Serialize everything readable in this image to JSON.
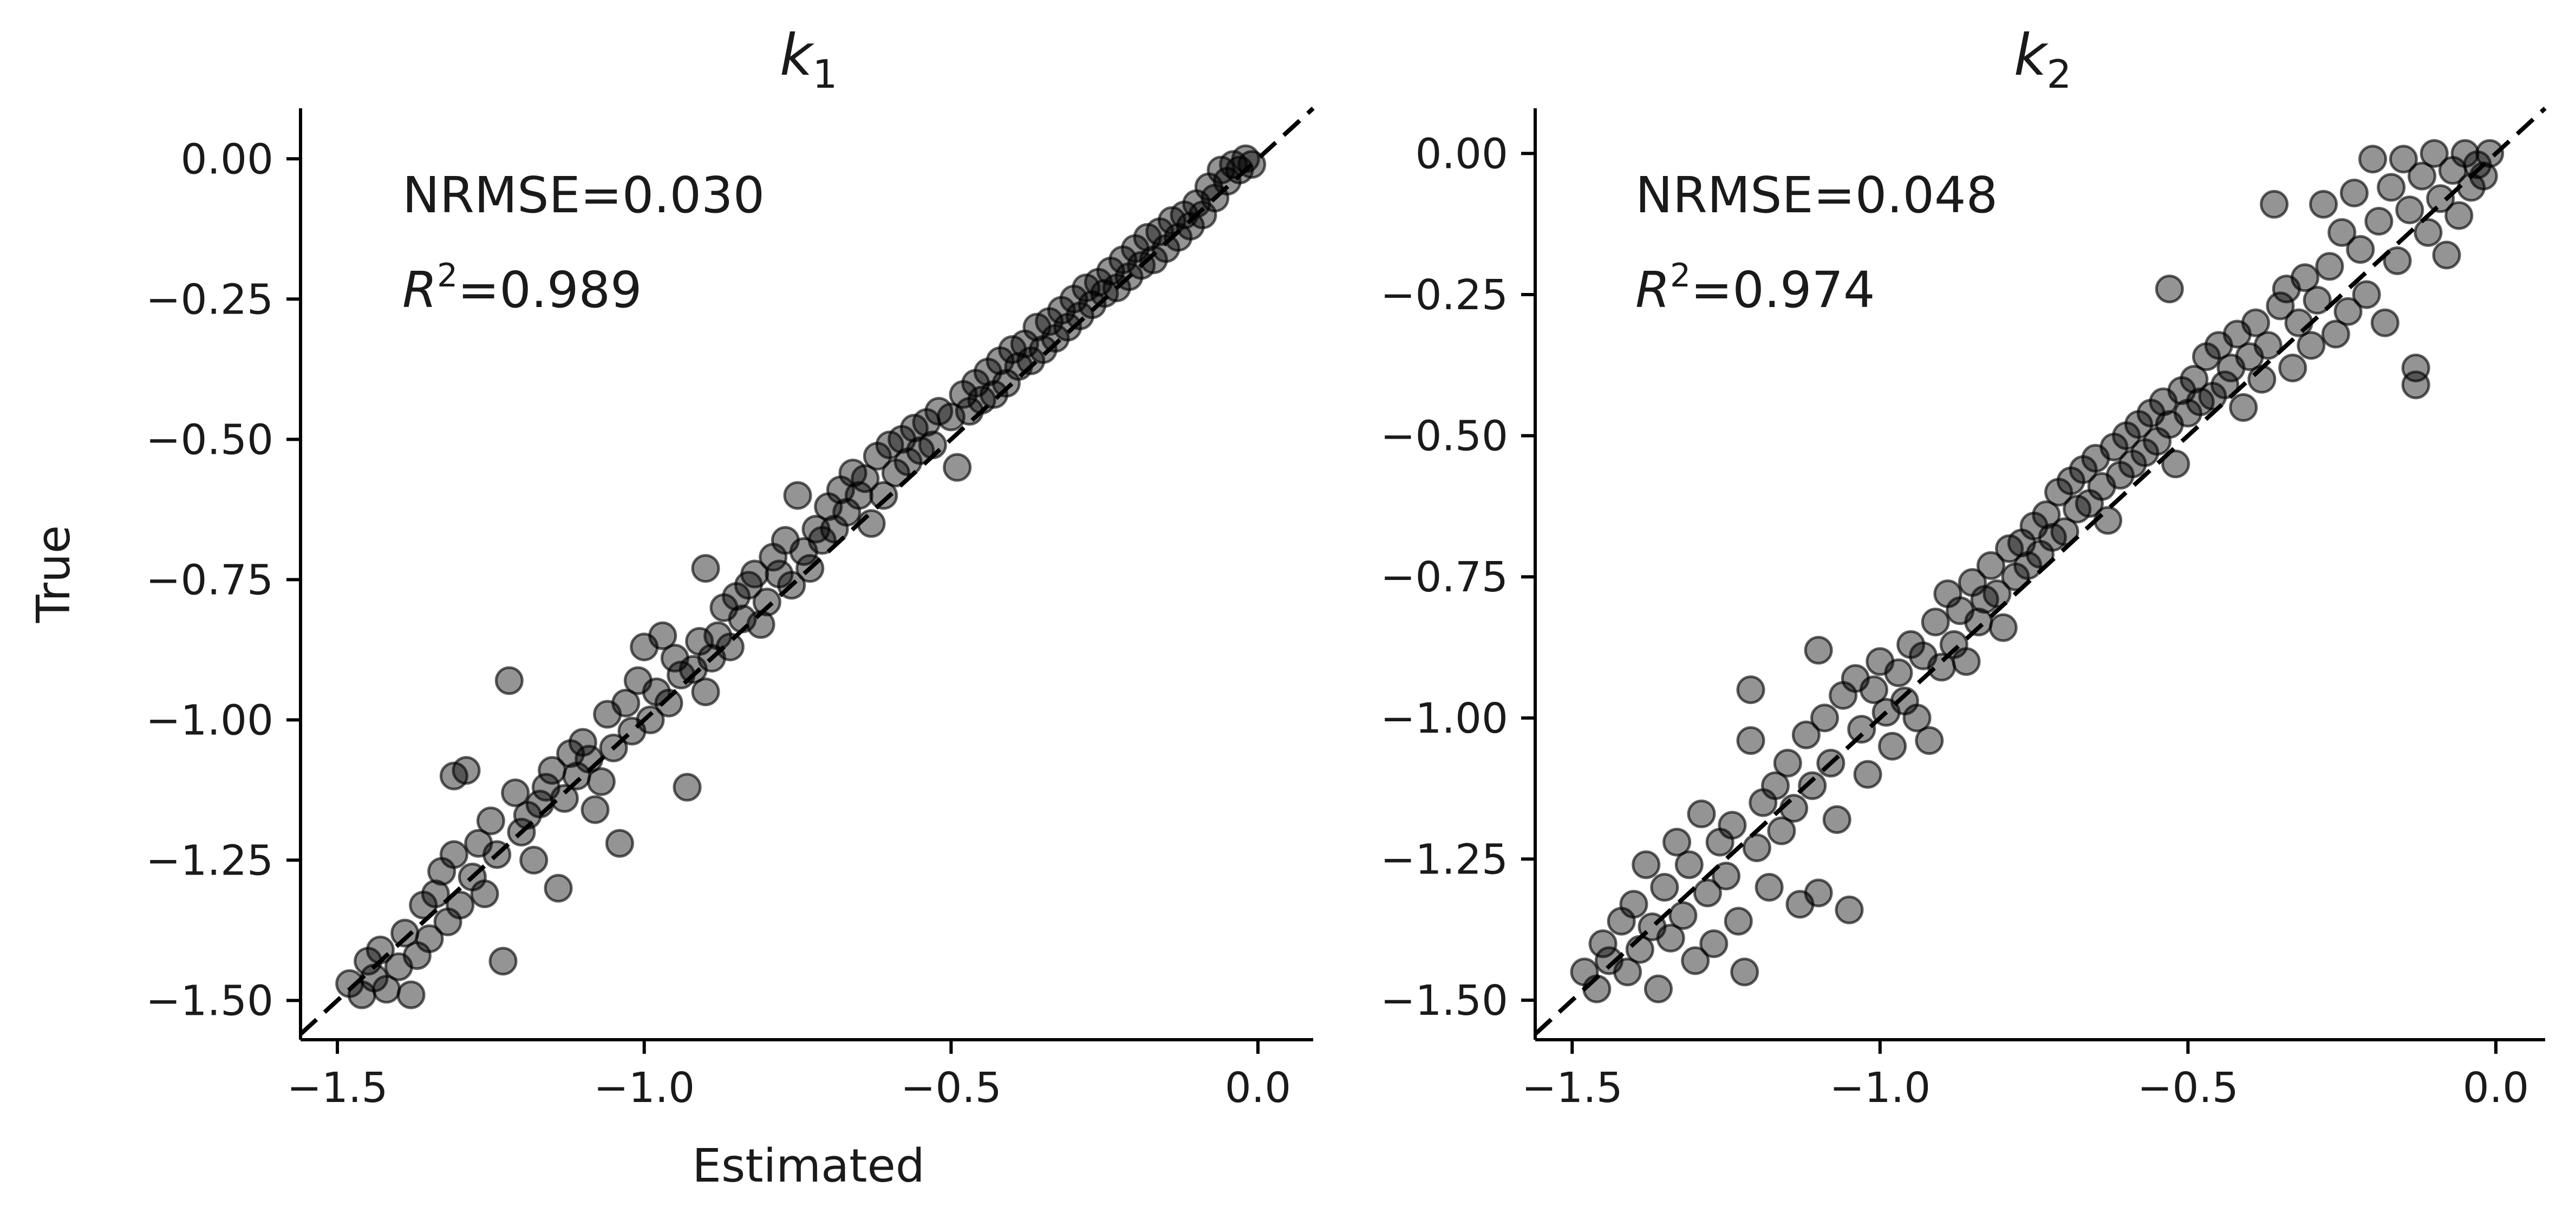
{
  "figure": {
    "shared_xlabel": "Estimated",
    "shared_ylabel": "True"
  },
  "chart_data": [
    {
      "type": "scatter",
      "title": "k",
      "title_subscript": "1",
      "xlabel": "Estimated",
      "ylabel": "True",
      "xlim": [
        -1.56,
        0.09
      ],
      "ylim": [
        -1.57,
        0.09
      ],
      "xticks": [
        -1.5,
        -1.0,
        -0.5,
        0.0
      ],
      "xtick_labels": [
        "−1.5",
        "−1.0",
        "−0.5",
        "0.0"
      ],
      "yticks": [
        0.0,
        -0.25,
        -0.5,
        -0.75,
        -1.0,
        -1.25,
        -1.5
      ],
      "ytick_labels": [
        "0.00",
        "−0.25",
        "−0.50",
        "−0.75",
        "−1.00",
        "−1.25",
        "−1.50"
      ],
      "reference_line": "y = x (dashed)",
      "annotations": {
        "nrmse_text": "NRMSE=0.030",
        "r2_prefix": "R",
        "r2_exp": "2",
        "r2_value": "=0.989"
      },
      "marker_color": "#000000",
      "marker_alpha": 0.42,
      "points": [
        [
          -1.48,
          -1.47
        ],
        [
          -1.46,
          -1.49
        ],
        [
          -1.45,
          -1.43
        ],
        [
          -1.44,
          -1.46
        ],
        [
          -1.43,
          -1.41
        ],
        [
          -1.42,
          -1.48
        ],
        [
          -1.4,
          -1.44
        ],
        [
          -1.39,
          -1.38
        ],
        [
          -1.38,
          -1.49
        ],
        [
          -1.37,
          -1.42
        ],
        [
          -1.36,
          -1.33
        ],
        [
          -1.35,
          -1.39
        ],
        [
          -1.34,
          -1.31
        ],
        [
          -1.33,
          -1.27
        ],
        [
          -1.32,
          -1.36
        ],
        [
          -1.31,
          -1.1
        ],
        [
          -1.31,
          -1.24
        ],
        [
          -1.3,
          -1.33
        ],
        [
          -1.29,
          -1.09
        ],
        [
          -1.28,
          -1.28
        ],
        [
          -1.27,
          -1.22
        ],
        [
          -1.26,
          -1.31
        ],
        [
          -1.25,
          -1.18
        ],
        [
          -1.24,
          -1.24
        ],
        [
          -1.23,
          -1.43
        ],
        [
          -1.22,
          -0.93
        ],
        [
          -1.21,
          -1.13
        ],
        [
          -1.2,
          -1.2
        ],
        [
          -1.19,
          -1.17
        ],
        [
          -1.18,
          -1.25
        ],
        [
          -1.17,
          -1.15
        ],
        [
          -1.16,
          -1.12
        ],
        [
          -1.15,
          -1.09
        ],
        [
          -1.14,
          -1.3
        ],
        [
          -1.13,
          -1.14
        ],
        [
          -1.12,
          -1.06
        ],
        [
          -1.11,
          -1.1
        ],
        [
          -1.1,
          -1.04
        ],
        [
          -1.09,
          -1.07
        ],
        [
          -1.08,
          -1.16
        ],
        [
          -1.07,
          -1.11
        ],
        [
          -1.06,
          -0.99
        ],
        [
          -1.05,
          -1.05
        ],
        [
          -1.04,
          -1.22
        ],
        [
          -1.03,
          -0.97
        ],
        [
          -1.02,
          -1.02
        ],
        [
          -1.01,
          -0.93
        ],
        [
          -1.0,
          -0.87
        ],
        [
          -0.99,
          -1.0
        ],
        [
          -0.98,
          -0.95
        ],
        [
          -0.97,
          -0.85
        ],
        [
          -0.96,
          -0.97
        ],
        [
          -0.95,
          -0.89
        ],
        [
          -0.94,
          -0.92
        ],
        [
          -0.93,
          -1.12
        ],
        [
          -0.92,
          -0.91
        ],
        [
          -0.91,
          -0.86
        ],
        [
          -0.9,
          -0.95
        ],
        [
          -0.9,
          -0.73
        ],
        [
          -0.89,
          -0.89
        ],
        [
          -0.88,
          -0.85
        ],
        [
          -0.87,
          -0.8
        ],
        [
          -0.86,
          -0.87
        ],
        [
          -0.85,
          -0.78
        ],
        [
          -0.84,
          -0.82
        ],
        [
          -0.83,
          -0.76
        ],
        [
          -0.82,
          -0.74
        ],
        [
          -0.81,
          -0.83
        ],
        [
          -0.8,
          -0.79
        ],
        [
          -0.79,
          -0.71
        ],
        [
          -0.78,
          -0.74
        ],
        [
          -0.77,
          -0.68
        ],
        [
          -0.76,
          -0.76
        ],
        [
          -0.75,
          -0.6
        ],
        [
          -0.74,
          -0.7
        ],
        [
          -0.73,
          -0.73
        ],
        [
          -0.72,
          -0.66
        ],
        [
          -0.71,
          -0.68
        ],
        [
          -0.7,
          -0.62
        ],
        [
          -0.69,
          -0.66
        ],
        [
          -0.68,
          -0.59
        ],
        [
          -0.67,
          -0.63
        ],
        [
          -0.66,
          -0.56
        ],
        [
          -0.65,
          -0.6
        ],
        [
          -0.64,
          -0.57
        ],
        [
          -0.63,
          -0.65
        ],
        [
          -0.62,
          -0.53
        ],
        [
          -0.61,
          -0.6
        ],
        [
          -0.6,
          -0.51
        ],
        [
          -0.59,
          -0.56
        ],
        [
          -0.58,
          -0.5
        ],
        [
          -0.57,
          -0.54
        ],
        [
          -0.56,
          -0.48
        ],
        [
          -0.55,
          -0.52
        ],
        [
          -0.54,
          -0.47
        ],
        [
          -0.53,
          -0.51
        ],
        [
          -0.52,
          -0.45
        ],
        [
          -0.5,
          -0.46
        ],
        [
          -0.49,
          -0.55
        ],
        [
          -0.48,
          -0.42
        ],
        [
          -0.47,
          -0.45
        ],
        [
          -0.46,
          -0.4
        ],
        [
          -0.45,
          -0.43
        ],
        [
          -0.44,
          -0.38
        ],
        [
          -0.43,
          -0.42
        ],
        [
          -0.42,
          -0.36
        ],
        [
          -0.41,
          -0.4
        ],
        [
          -0.4,
          -0.34
        ],
        [
          -0.39,
          -0.37
        ],
        [
          -0.38,
          -0.33
        ],
        [
          -0.37,
          -0.36
        ],
        [
          -0.36,
          -0.3
        ],
        [
          -0.35,
          -0.34
        ],
        [
          -0.34,
          -0.29
        ],
        [
          -0.33,
          -0.32
        ],
        [
          -0.32,
          -0.27
        ],
        [
          -0.31,
          -0.3
        ],
        [
          -0.3,
          -0.25
        ],
        [
          -0.29,
          -0.28
        ],
        [
          -0.28,
          -0.23
        ],
        [
          -0.27,
          -0.26
        ],
        [
          -0.26,
          -0.22
        ],
        [
          -0.25,
          -0.24
        ],
        [
          -0.24,
          -0.2
        ],
        [
          -0.23,
          -0.23
        ],
        [
          -0.22,
          -0.18
        ],
        [
          -0.21,
          -0.21
        ],
        [
          -0.2,
          -0.16
        ],
        [
          -0.19,
          -0.19
        ],
        [
          -0.18,
          -0.14
        ],
        [
          -0.17,
          -0.18
        ],
        [
          -0.16,
          -0.13
        ],
        [
          -0.15,
          -0.16
        ],
        [
          -0.14,
          -0.11
        ],
        [
          -0.13,
          -0.14
        ],
        [
          -0.12,
          -0.1
        ],
        [
          -0.11,
          -0.12
        ],
        [
          -0.1,
          -0.08
        ],
        [
          -0.09,
          -0.1
        ],
        [
          -0.08,
          -0.05
        ],
        [
          -0.07,
          -0.07
        ],
        [
          -0.06,
          -0.02
        ],
        [
          -0.05,
          -0.04
        ],
        [
          -0.04,
          -0.01
        ],
        [
          -0.03,
          -0.02
        ],
        [
          -0.02,
          0.0
        ],
        [
          -0.01,
          -0.01
        ]
      ]
    },
    {
      "type": "scatter",
      "title": "k",
      "title_subscript": "2",
      "xlabel": "",
      "ylabel": "",
      "xlim": [
        -1.56,
        0.08
      ],
      "ylim": [
        -1.57,
        0.08
      ],
      "xticks": [
        -1.5,
        -1.0,
        -0.5,
        0.0
      ],
      "xtick_labels": [
        "−1.5",
        "−1.0",
        "−0.5",
        "0.0"
      ],
      "yticks": [
        0.0,
        -0.25,
        -0.5,
        -0.75,
        -1.0,
        -1.25,
        -1.5
      ],
      "ytick_labels": [
        "0.00",
        "−0.25",
        "−0.50",
        "−0.75",
        "−1.00",
        "−1.25",
        "−1.50"
      ],
      "reference_line": "y = x (dashed)",
      "annotations": {
        "nrmse_text": "NRMSE=0.048",
        "r2_prefix": "R",
        "r2_exp": "2",
        "r2_value": "=0.974"
      },
      "marker_color": "#000000",
      "marker_alpha": 0.42,
      "points": [
        [
          -1.48,
          -1.45
        ],
        [
          -1.46,
          -1.48
        ],
        [
          -1.45,
          -1.4
        ],
        [
          -1.44,
          -1.43
        ],
        [
          -1.42,
          -1.36
        ],
        [
          -1.41,
          -1.45
        ],
        [
          -1.4,
          -1.33
        ],
        [
          -1.39,
          -1.41
        ],
        [
          -1.38,
          -1.26
        ],
        [
          -1.37,
          -1.37
        ],
        [
          -1.36,
          -1.48
        ],
        [
          -1.35,
          -1.3
        ],
        [
          -1.34,
          -1.39
        ],
        [
          -1.33,
          -1.22
        ],
        [
          -1.32,
          -1.35
        ],
        [
          -1.31,
          -1.26
        ],
        [
          -1.3,
          -1.43
        ],
        [
          -1.29,
          -1.17
        ],
        [
          -1.28,
          -1.31
        ],
        [
          -1.27,
          -1.4
        ],
        [
          -1.26,
          -1.22
        ],
        [
          -1.25,
          -1.28
        ],
        [
          -1.24,
          -1.19
        ],
        [
          -1.23,
          -1.36
        ],
        [
          -1.22,
          -1.45
        ],
        [
          -1.21,
          -0.95
        ],
        [
          -1.21,
          -1.04
        ],
        [
          -1.2,
          -1.23
        ],
        [
          -1.19,
          -1.15
        ],
        [
          -1.18,
          -1.3
        ],
        [
          -1.17,
          -1.12
        ],
        [
          -1.16,
          -1.2
        ],
        [
          -1.15,
          -1.08
        ],
        [
          -1.14,
          -1.16
        ],
        [
          -1.13,
          -1.33
        ],
        [
          -1.12,
          -1.03
        ],
        [
          -1.11,
          -1.12
        ],
        [
          -1.1,
          -0.88
        ],
        [
          -1.1,
          -1.31
        ],
        [
          -1.09,
          -1.0
        ],
        [
          -1.08,
          -1.08
        ],
        [
          -1.07,
          -1.18
        ],
        [
          -1.06,
          -0.96
        ],
        [
          -1.05,
          -1.34
        ],
        [
          -1.04,
          -0.93
        ],
        [
          -1.03,
          -1.02
        ],
        [
          -1.02,
          -1.1
        ],
        [
          -1.01,
          -0.95
        ],
        [
          -1.0,
          -0.9
        ],
        [
          -0.99,
          -0.99
        ],
        [
          -0.98,
          -1.05
        ],
        [
          -0.97,
          -0.92
        ],
        [
          -0.96,
          -0.97
        ],
        [
          -0.95,
          -0.87
        ],
        [
          -0.94,
          -1.0
        ],
        [
          -0.93,
          -0.89
        ],
        [
          -0.92,
          -1.04
        ],
        [
          -0.91,
          -0.83
        ],
        [
          -0.9,
          -0.91
        ],
        [
          -0.89,
          -0.78
        ],
        [
          -0.88,
          -0.87
        ],
        [
          -0.87,
          -0.81
        ],
        [
          -0.86,
          -0.9
        ],
        [
          -0.85,
          -0.76
        ],
        [
          -0.84,
          -0.83
        ],
        [
          -0.83,
          -0.79
        ],
        [
          -0.82,
          -0.73
        ],
        [
          -0.81,
          -0.78
        ],
        [
          -0.8,
          -0.84
        ],
        [
          -0.79,
          -0.7
        ],
        [
          -0.78,
          -0.75
        ],
        [
          -0.77,
          -0.69
        ],
        [
          -0.76,
          -0.73
        ],
        [
          -0.75,
          -0.66
        ],
        [
          -0.74,
          -0.71
        ],
        [
          -0.73,
          -0.64
        ],
        [
          -0.72,
          -0.68
        ],
        [
          -0.71,
          -0.6
        ],
        [
          -0.7,
          -0.67
        ],
        [
          -0.69,
          -0.58
        ],
        [
          -0.68,
          -0.63
        ],
        [
          -0.67,
          -0.56
        ],
        [
          -0.66,
          -0.62
        ],
        [
          -0.65,
          -0.54
        ],
        [
          -0.64,
          -0.59
        ],
        [
          -0.63,
          -0.65
        ],
        [
          -0.62,
          -0.52
        ],
        [
          -0.61,
          -0.57
        ],
        [
          -0.6,
          -0.5
        ],
        [
          -0.59,
          -0.55
        ],
        [
          -0.58,
          -0.48
        ],
        [
          -0.57,
          -0.53
        ],
        [
          -0.56,
          -0.46
        ],
        [
          -0.55,
          -0.51
        ],
        [
          -0.54,
          -0.44
        ],
        [
          -0.53,
          -0.24
        ],
        [
          -0.53,
          -0.48
        ],
        [
          -0.52,
          -0.55
        ],
        [
          -0.51,
          -0.42
        ],
        [
          -0.5,
          -0.46
        ],
        [
          -0.49,
          -0.4
        ],
        [
          -0.48,
          -0.44
        ],
        [
          -0.47,
          -0.36
        ],
        [
          -0.46,
          -0.43
        ],
        [
          -0.45,
          -0.34
        ],
        [
          -0.44,
          -0.41
        ],
        [
          -0.43,
          -0.38
        ],
        [
          -0.42,
          -0.32
        ],
        [
          -0.41,
          -0.45
        ],
        [
          -0.4,
          -0.36
        ],
        [
          -0.39,
          -0.3
        ],
        [
          -0.38,
          -0.4
        ],
        [
          -0.37,
          -0.34
        ],
        [
          -0.36,
          -0.09
        ],
        [
          -0.35,
          -0.27
        ],
        [
          -0.34,
          -0.24
        ],
        [
          -0.33,
          -0.38
        ],
        [
          -0.32,
          -0.3
        ],
        [
          -0.31,
          -0.22
        ],
        [
          -0.3,
          -0.34
        ],
        [
          -0.29,
          -0.26
        ],
        [
          -0.28,
          -0.09
        ],
        [
          -0.27,
          -0.2
        ],
        [
          -0.26,
          -0.32
        ],
        [
          -0.25,
          -0.14
        ],
        [
          -0.24,
          -0.28
        ],
        [
          -0.23,
          -0.07
        ],
        [
          -0.22,
          -0.17
        ],
        [
          -0.21,
          -0.25
        ],
        [
          -0.2,
          -0.01
        ],
        [
          -0.19,
          -0.12
        ],
        [
          -0.18,
          -0.3
        ],
        [
          -0.17,
          -0.06
        ],
        [
          -0.16,
          -0.19
        ],
        [
          -0.15,
          -0.01
        ],
        [
          -0.14,
          -0.1
        ],
        [
          -0.13,
          -0.38
        ],
        [
          -0.13,
          -0.41
        ],
        [
          -0.12,
          -0.04
        ],
        [
          -0.11,
          -0.14
        ],
        [
          -0.1,
          0.0
        ],
        [
          -0.09,
          -0.08
        ],
        [
          -0.08,
          -0.18
        ],
        [
          -0.07,
          -0.03
        ],
        [
          -0.06,
          -0.11
        ],
        [
          -0.05,
          0.0
        ],
        [
          -0.04,
          -0.06
        ],
        [
          -0.03,
          -0.02
        ],
        [
          -0.02,
          -0.04
        ],
        [
          -0.01,
          0.0
        ]
      ]
    }
  ]
}
